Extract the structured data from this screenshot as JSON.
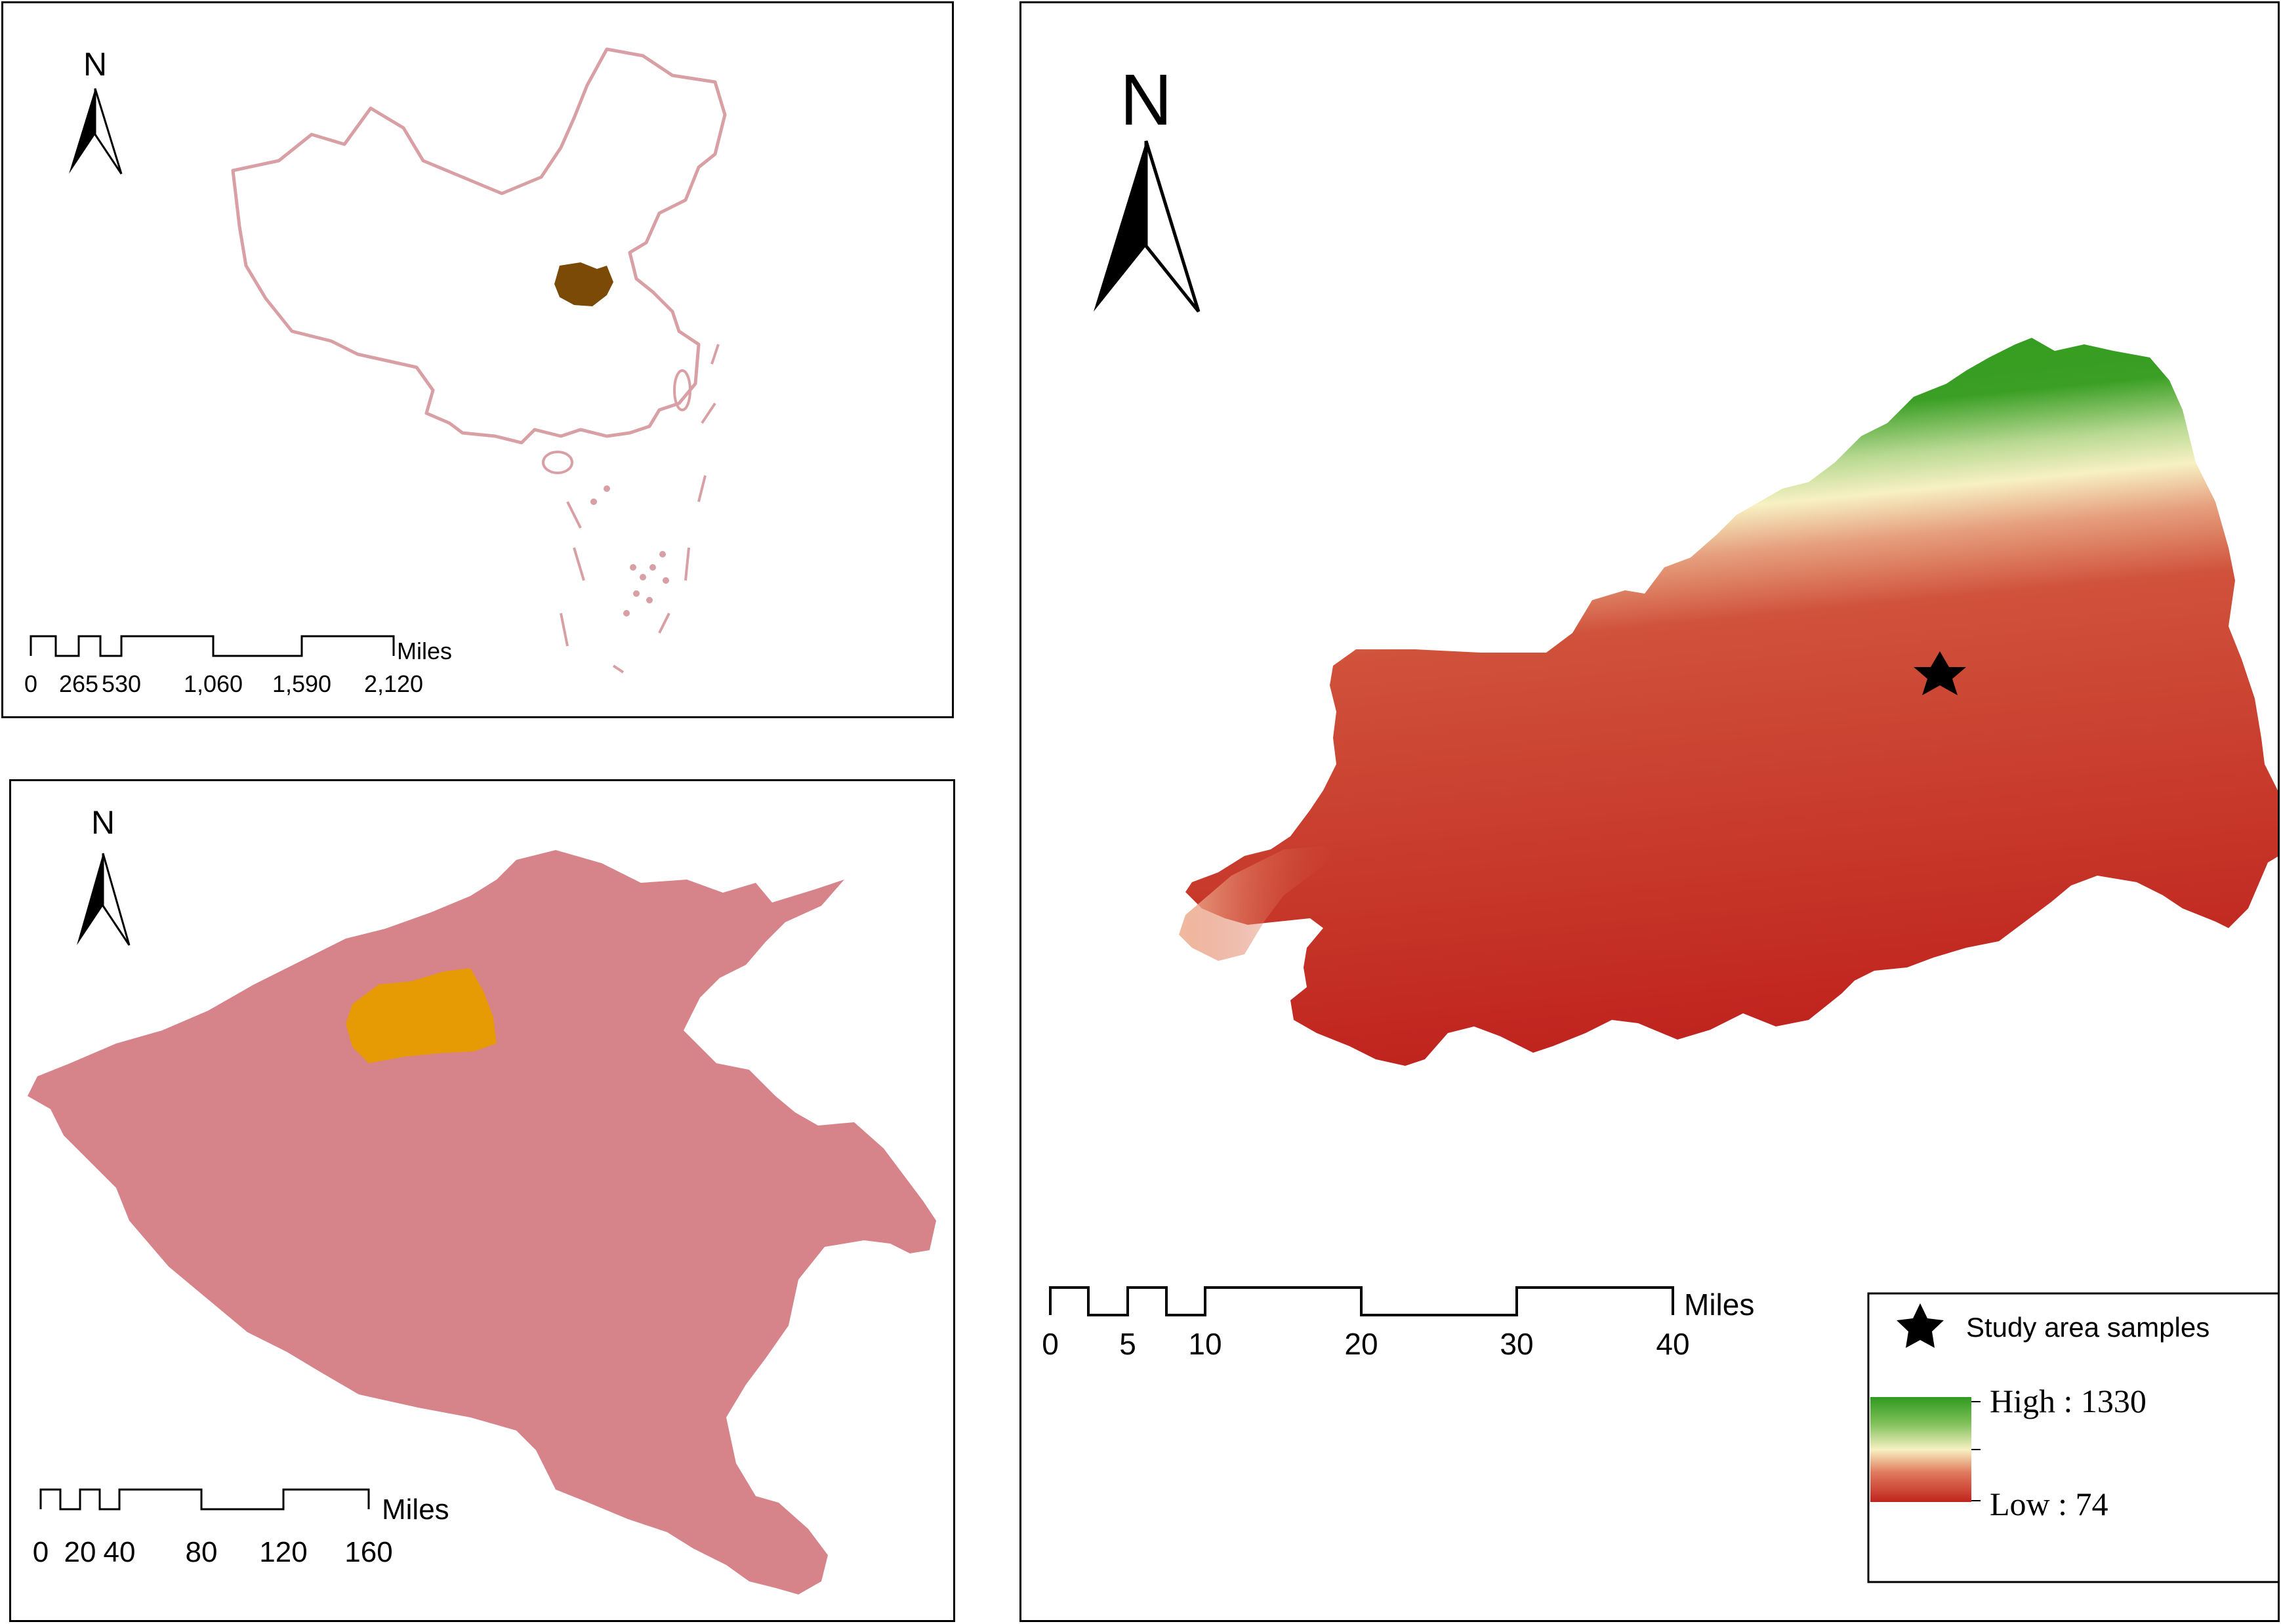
{
  "panels": {
    "china": {
      "north": "N",
      "scale": {
        "labels": [
          "0",
          "265",
          "530",
          "1,060",
          "1,590",
          "2,120"
        ],
        "unit": "Miles"
      }
    },
    "henan": {
      "north": "N",
      "scale": {
        "labels": [
          "0",
          "20",
          "40",
          "80",
          "120",
          "160"
        ],
        "unit": "Miles"
      }
    },
    "study": {
      "north": "N",
      "scale": {
        "labels": [
          "0",
          "5",
          "10",
          "20",
          "30",
          "40"
        ],
        "unit": "Miles"
      },
      "legend": {
        "samples_label": "Study area samples",
        "high_label": "High : 1330",
        "low_label": "Low : 74"
      }
    }
  },
  "colors": {
    "china_outline": "#d8a0a4",
    "province_highlight": "#7a4a06",
    "henan_fill": "#d6838a",
    "study_region_in_henan": "#e69b05",
    "dem_high": "#2f9a1e",
    "dem_mid": "#f7f1c2",
    "dem_low": "#c0241e"
  }
}
